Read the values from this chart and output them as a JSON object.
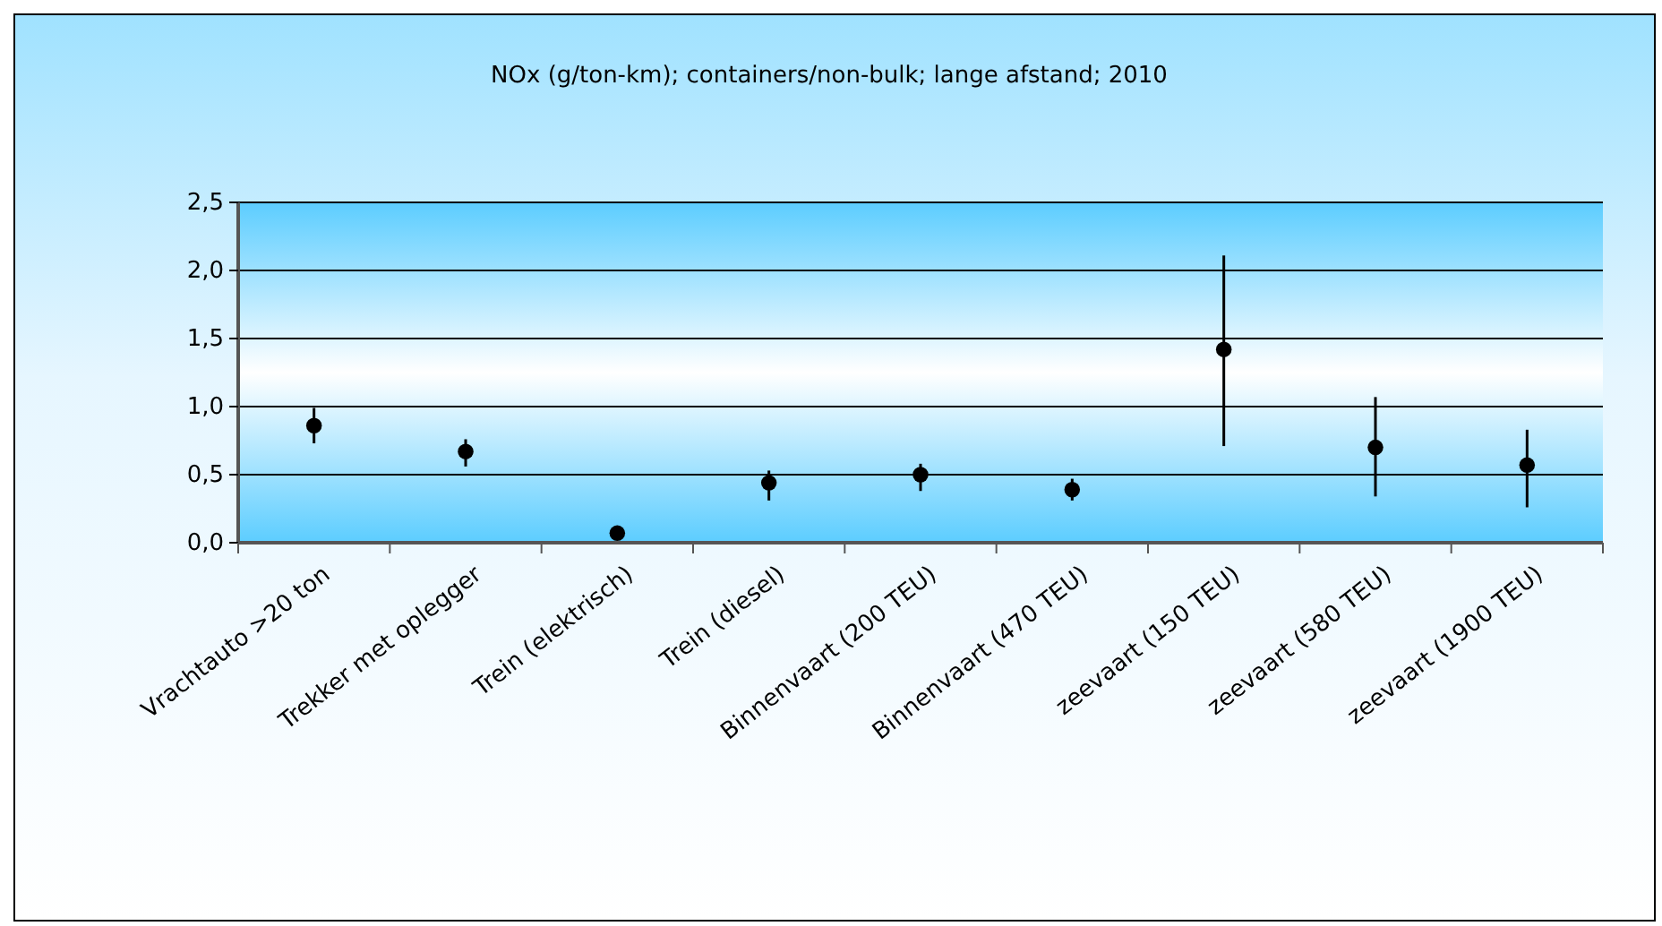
{
  "chart_data": {
    "type": "scatter",
    "title": "NOx (g/ton-km); containers/non-bulk; lange afstand; 2010",
    "categories": [
      "Vrachtauto >20 ton",
      "Trekker met oplegger",
      "Trein (elektrisch)",
      "Trein (diesel)",
      "Binnenvaart (200 TEU)",
      "Binnenvaart (470 TEU)",
      "zeevaart (150 TEU)",
      "zeevaart (580 TEU)",
      "zeevaart (1900 TEU)"
    ],
    "series": [
      {
        "color": "#000000",
        "values": [
          0.86,
          0.67,
          0.07,
          0.44,
          0.5,
          0.39,
          1.42,
          0.7,
          0.57
        ],
        "errors": [
          [
            0.73,
            0.99
          ],
          [
            0.56,
            0.76
          ],
          null,
          [
            0.31,
            0.53
          ],
          [
            0.38,
            0.58
          ],
          [
            0.31,
            0.47
          ],
          [
            0.71,
            2.11
          ],
          [
            0.34,
            1.07
          ],
          [
            0.26,
            0.83
          ]
        ]
      }
    ],
    "ylim": [
      0,
      2.5
    ],
    "yticks": [
      {
        "value": 0,
        "label": "0,0"
      },
      {
        "value": 0.5,
        "label": "0,5"
      },
      {
        "value": 1,
        "label": "1,0"
      },
      {
        "value": 1.5,
        "label": "1,5"
      },
      {
        "value": 2,
        "label": "2,0"
      },
      {
        "value": 2.5,
        "label": "2,5"
      }
    ],
    "grid": "y",
    "marker": "circle"
  }
}
